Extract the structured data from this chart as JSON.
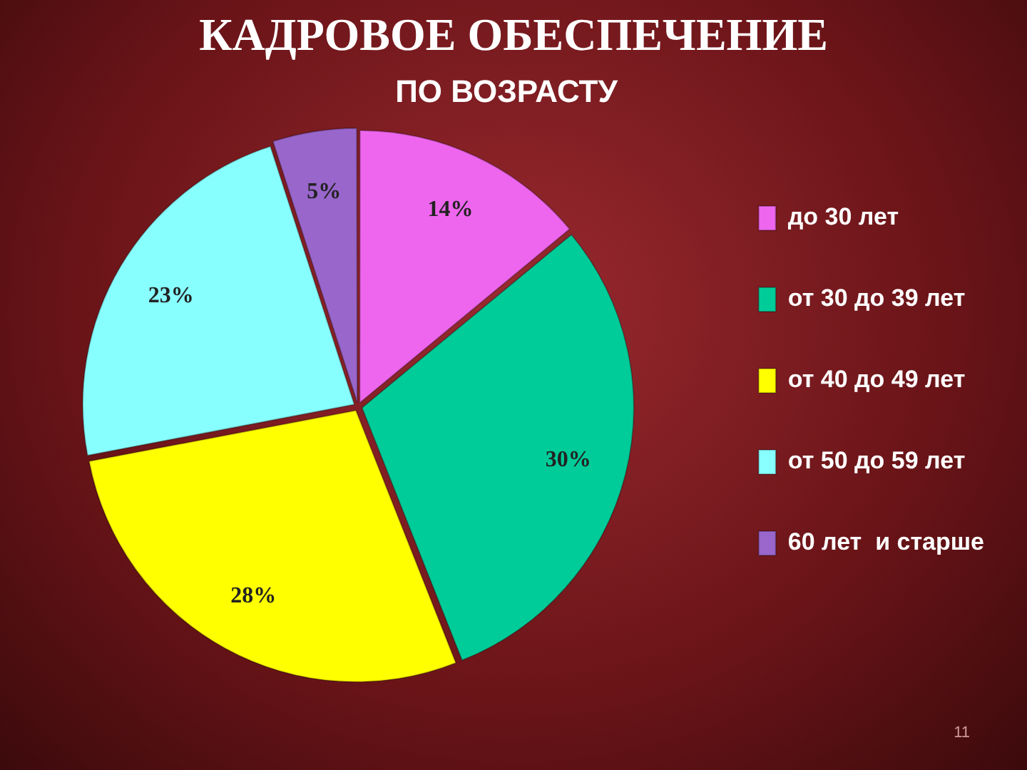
{
  "chart_data": {
    "type": "pie",
    "title": "КАДРОВОЕ ОБЕСПЕЧЕНИЕ",
    "subtitle": "ПО ВОЗРАСТУ",
    "categories": [
      "до 30 лет",
      "от 30 до 39 лет",
      "от 40 до 49 лет",
      "от 50 до 59 лет",
      "60 лет  и старше"
    ],
    "values": [
      14,
      30,
      28,
      23,
      5
    ],
    "colors": [
      "#ee66ee",
      "#00cc99",
      "#ffff00",
      "#88ffff",
      "#9966cc"
    ],
    "value_labels": [
      "14%",
      "30%",
      "28%",
      "23%",
      "5%"
    ],
    "legend": "right",
    "annotations": [
      "11"
    ]
  }
}
